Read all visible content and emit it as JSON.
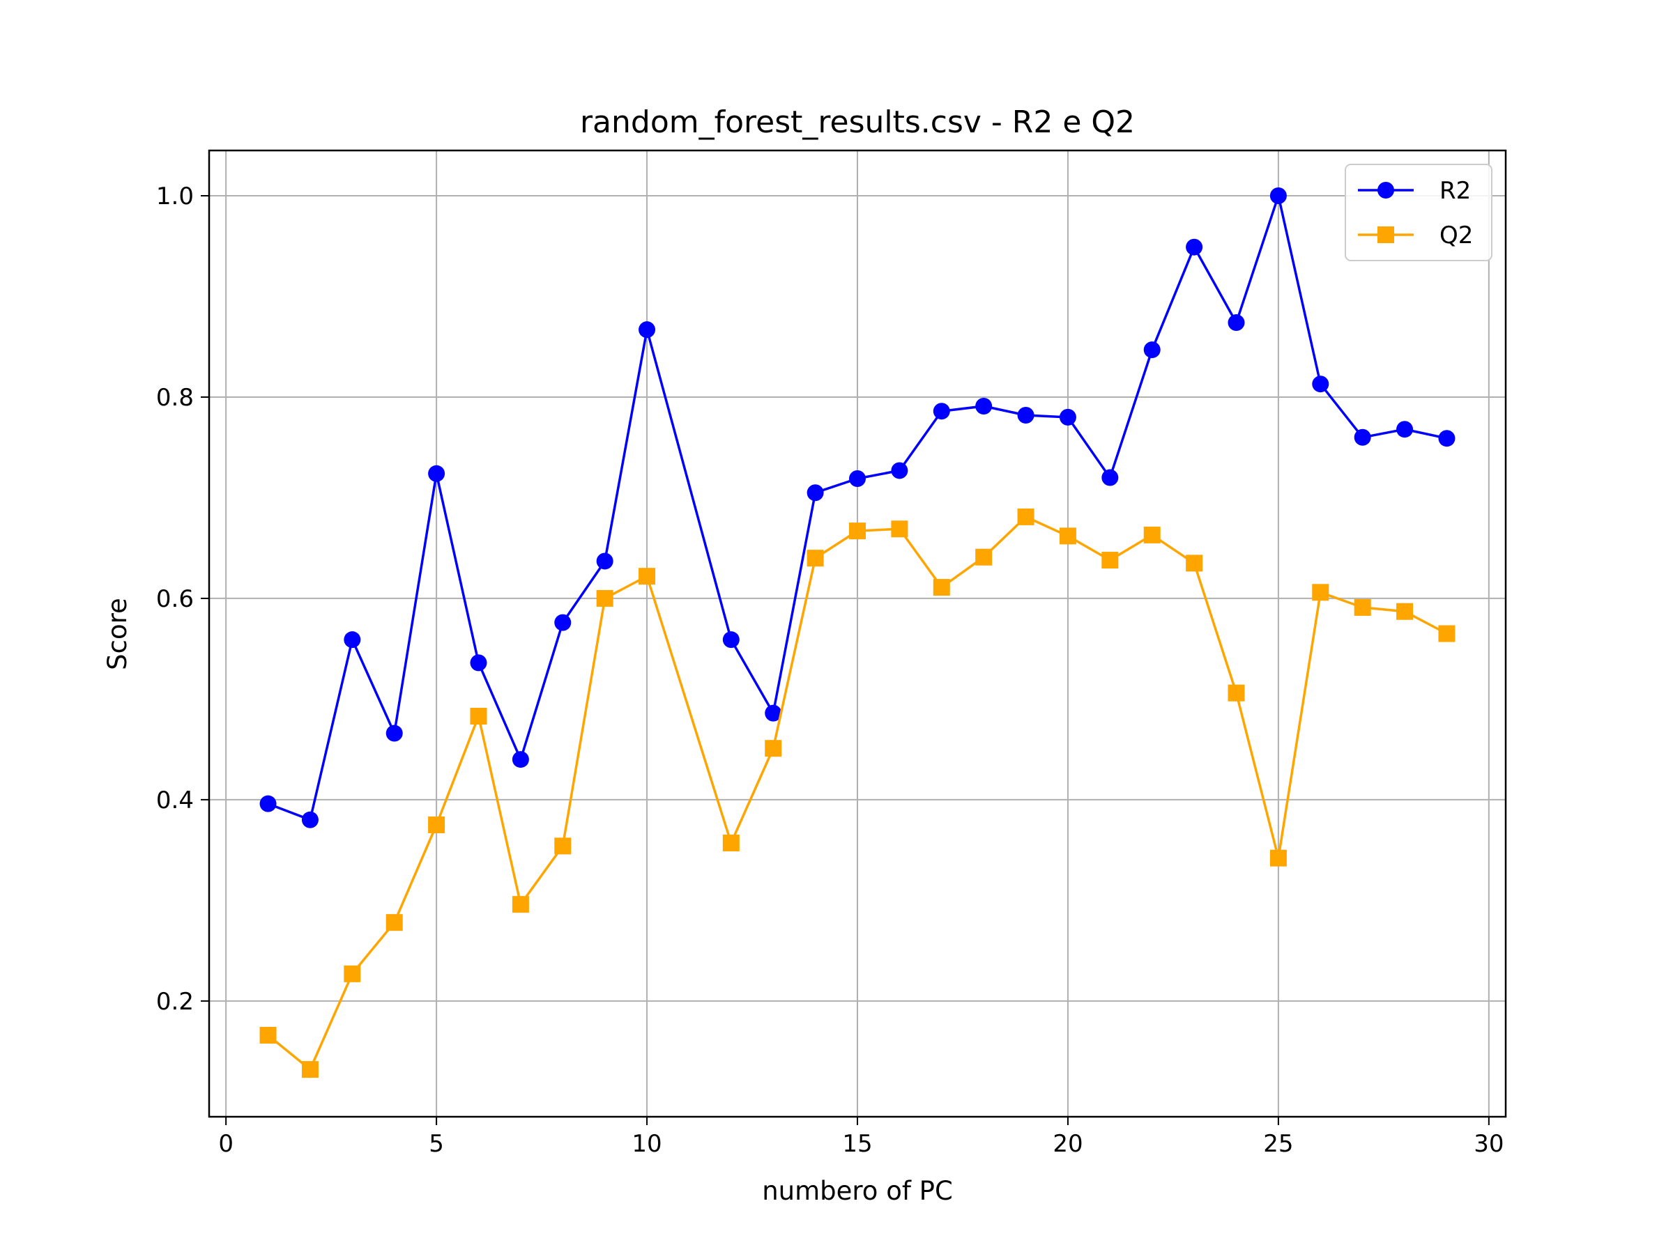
{
  "chart_data": {
    "type": "line",
    "title": "random_forest_results.csv - R2 e Q2",
    "xlabel": "numbero of PC",
    "ylabel": "Score",
    "xlim": [
      -0.4,
      30.4
    ],
    "ylim": [
      0.085,
      1.045
    ],
    "xticks": [
      0,
      5,
      10,
      15,
      20,
      25,
      30
    ],
    "yticks": [
      0.2,
      0.4,
      0.6,
      0.8,
      1.0
    ],
    "xtick_labels": [
      "0",
      "5",
      "10",
      "15",
      "20",
      "25",
      "30"
    ],
    "ytick_labels": [
      "0.2",
      "0.4",
      "0.6",
      "0.8",
      "1.0"
    ],
    "grid": true,
    "legend_position": "top-right",
    "x": [
      1,
      2,
      3,
      4,
      5,
      6,
      7,
      8,
      9,
      10,
      12,
      13,
      14,
      15,
      16,
      17,
      18,
      19,
      20,
      21,
      22,
      23,
      24,
      25,
      26,
      27,
      28,
      29
    ],
    "series": [
      {
        "name": "R2",
        "color": "#0000ff",
        "marker": "circle",
        "values": [
          0.396,
          0.38,
          0.559,
          0.466,
          0.724,
          0.536,
          0.44,
          0.576,
          0.637,
          0.867,
          0.559,
          0.486,
          0.705,
          0.719,
          0.727,
          0.786,
          0.791,
          0.782,
          0.78,
          0.72,
          0.847,
          0.949,
          0.874,
          1.0,
          0.813,
          0.76,
          0.768,
          0.759
        ]
      },
      {
        "name": "Q2",
        "color": "#ffa500",
        "marker": "square",
        "values": [
          0.166,
          0.132,
          0.227,
          0.278,
          0.375,
          0.483,
          0.296,
          0.354,
          0.6,
          0.622,
          0.357,
          0.451,
          0.64,
          0.667,
          0.669,
          0.611,
          0.641,
          0.681,
          0.662,
          0.638,
          0.663,
          0.635,
          0.506,
          0.342,
          0.606,
          0.591,
          0.587,
          0.565
        ]
      }
    ]
  }
}
